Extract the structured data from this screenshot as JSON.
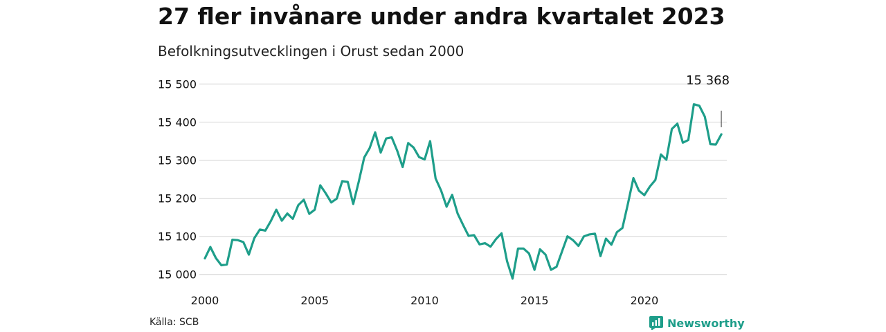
{
  "header": {
    "title": "27 fler invånare under andra kvartalet 2023",
    "subtitle": "Befolkningsutvecklingen i Orust sedan 2000"
  },
  "footer": {
    "source": "Källa: SCB",
    "brand": "Newsworthy"
  },
  "colors": {
    "line": "#1e9e8a",
    "grid": "#d9d9d9",
    "brand": "#1e9e8a"
  },
  "chart_data": {
    "type": "line",
    "title": "27 fler invånare under andra kvartalet 2023",
    "subtitle": "Befolkningsutvecklingen i Orust sedan 2000",
    "xlabel": "",
    "ylabel": "",
    "xlim": [
      2000,
      2023.75
    ],
    "ylim": [
      14985,
      15510
    ],
    "x_ticks": [
      2000,
      2005,
      2010,
      2015,
      2020
    ],
    "x_tick_labels": [
      "2000",
      "2005",
      "2010",
      "2015",
      "2020"
    ],
    "y_ticks": [
      15000,
      15100,
      15200,
      15300,
      15400,
      15500
    ],
    "y_tick_labels": [
      "15 000",
      "15 100",
      "15 200",
      "15 300",
      "15 400",
      "15 500"
    ],
    "grid": true,
    "annotation": {
      "text": "15 368",
      "x": 2023.5,
      "value": 15368
    },
    "series": [
      {
        "x": [
          2000.0,
          2000.25,
          2000.5,
          2000.75,
          2001.0,
          2001.25,
          2001.5,
          2001.75,
          2002.0,
          2002.25,
          2002.5,
          2002.75,
          2003.0,
          2003.25,
          2003.5,
          2003.75,
          2004.0,
          2004.25,
          2004.5,
          2004.75,
          2005.0,
          2005.25,
          2005.5,
          2005.75,
          2006.0,
          2006.25,
          2006.5,
          2006.75,
          2007.0,
          2007.25,
          2007.5,
          2007.75,
          2008.0,
          2008.25,
          2008.5,
          2008.75,
          2009.0,
          2009.25,
          2009.5,
          2009.75,
          2010.0,
          2010.25,
          2010.5,
          2010.75,
          2011.0,
          2011.25,
          2011.5,
          2011.75,
          2012.0,
          2012.25,
          2012.5,
          2012.75,
          2013.0,
          2013.25,
          2013.5,
          2013.75,
          2014.0,
          2014.25,
          2014.5,
          2014.75,
          2015.0,
          2015.25,
          2015.5,
          2015.75,
          2016.0,
          2016.25,
          2016.5,
          2016.75,
          2017.0,
          2017.25,
          2017.5,
          2017.75,
          2018.0,
          2018.25,
          2018.5,
          2018.75,
          2019.0,
          2019.25,
          2019.5,
          2019.75,
          2020.0,
          2020.25,
          2020.5,
          2020.75,
          2021.0,
          2021.25,
          2021.5,
          2021.75,
          2022.0,
          2022.25,
          2022.5,
          2022.75,
          2023.0,
          2023.25,
          2023.5
        ],
        "values": [
          15042,
          15072,
          15043,
          15024,
          15026,
          15091,
          15090,
          15085,
          15052,
          15095,
          15118,
          15115,
          15140,
          15170,
          15141,
          15160,
          15146,
          15182,
          15196,
          15159,
          15170,
          15234,
          15213,
          15189,
          15199,
          15245,
          15243,
          15185,
          15243,
          15307,
          15332,
          15373,
          15320,
          15357,
          15360,
          15325,
          15282,
          15345,
          15333,
          15308,
          15302,
          15350,
          15252,
          15220,
          15178,
          15209,
          15160,
          15130,
          15101,
          15103,
          15079,
          15082,
          15073,
          15093,
          15108,
          15035,
          14989,
          15068,
          15068,
          15055,
          15012,
          15066,
          15052,
          15012,
          15020,
          15060,
          15100,
          15090,
          15075,
          15100,
          15105,
          15107,
          15048,
          15094,
          15078,
          15111,
          15122,
          15185,
          15253,
          15220,
          15208,
          15231,
          15248,
          15315,
          15301,
          15382,
          15396,
          15346,
          15353,
          15447,
          15443,
          15414,
          15342,
          15341,
          15368
        ]
      }
    ]
  }
}
